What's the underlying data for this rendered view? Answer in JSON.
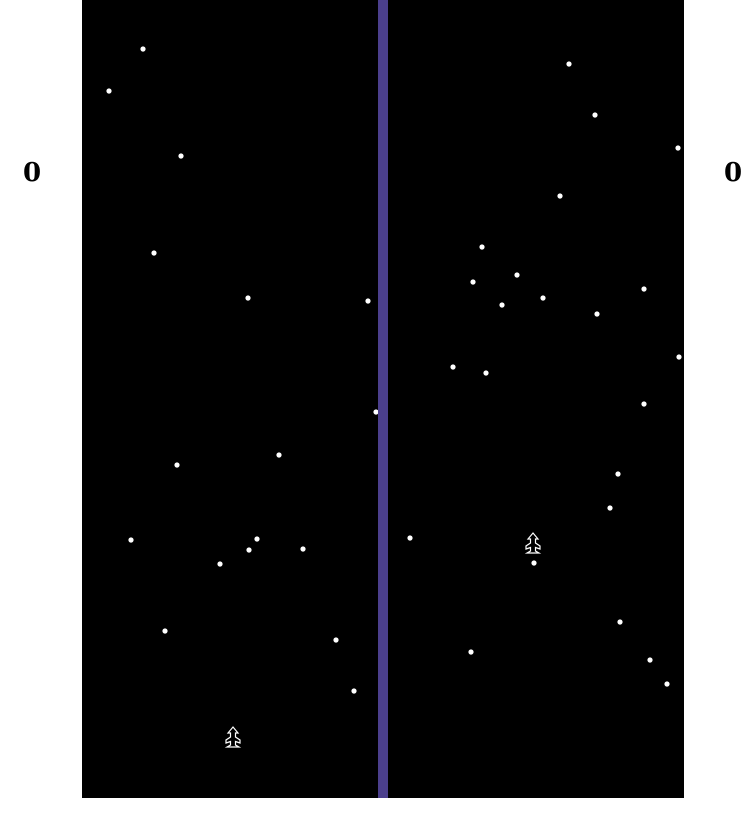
{
  "scores": {
    "left": "0",
    "right": "0"
  },
  "colors": {
    "background": "#ffffff",
    "field": "#000000",
    "divider": "#4b3f8c",
    "star": "#ffffff",
    "ship": "#ffffff",
    "score_text": "#000000"
  },
  "icons": {
    "left_ship": "rocket-ship-icon",
    "right_ship": "rocket-ship-icon"
  }
}
